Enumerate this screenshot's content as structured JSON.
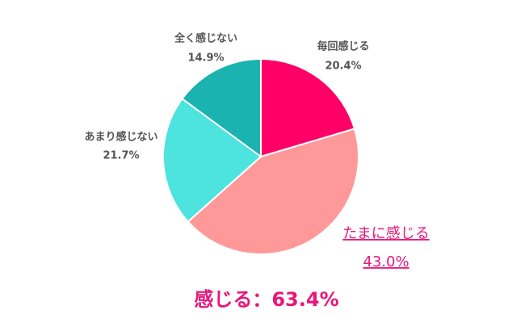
{
  "chart_data": {
    "type": "pie",
    "categories": [
      "毎回感じる",
      "たまに感じる",
      "あまり感じない",
      "全く感じない"
    ],
    "values": [
      20.4,
      43.0,
      21.7,
      14.9
    ],
    "value_labels": [
      "20.4%",
      "43.0%",
      "21.7%",
      "14.9%"
    ],
    "colors": [
      "#ff0066",
      "#ff9999",
      "#4de3df",
      "#1ab3b0"
    ],
    "highlight": 1,
    "annotation": "感じる：63.4%"
  }
}
